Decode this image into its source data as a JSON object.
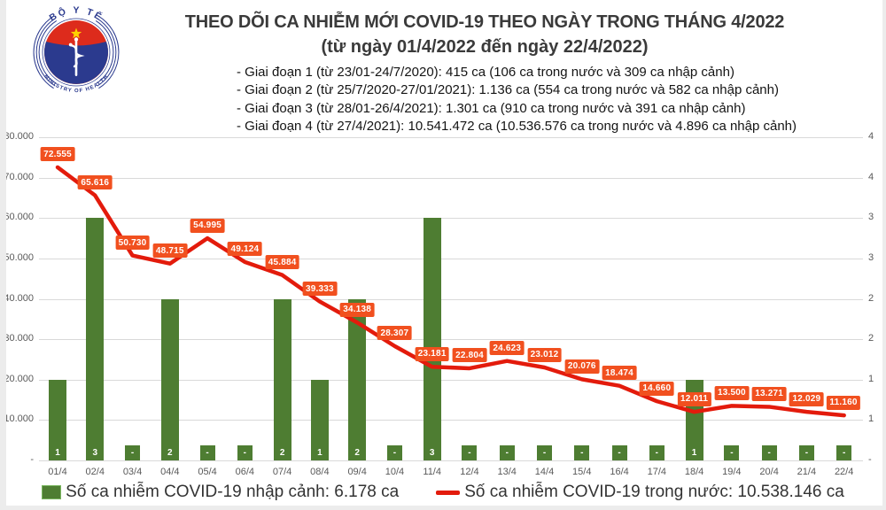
{
  "logo": {
    "top_text": "BỘ Y TẾ",
    "bottom_text": "MINISTRY OF HEALTH",
    "red": "#dd2b1c",
    "blue": "#2b3a8e",
    "star": "#ffd200"
  },
  "header": {
    "title": "THEO DÕI CA NHIỄM MỚI COVID-19 THEO NGÀY TRONG THÁNG 4/2022",
    "subtitle": "(từ ngày 01/4/2022 đến ngày 22/4/2022)",
    "phases": [
      "- Giai đoạn 1 (từ 23/01-24/7/2020): 415 ca (106 ca trong nước và 309 ca nhập cảnh)",
      "- Giai đoạn 2 (từ 25/7/2020-27/01/2021): 1.136 ca (554 ca trong nước và 582 ca nhập cảnh)",
      "- Giai đoạn 3 (từ 28/01-26/4/2021): 1.301 ca (910 ca trong nước và 391 ca nhập cảnh)",
      "- Giai đoạn 4 (từ 27/4/2021): 10.541.472 ca (10.536.576 ca trong nước và 4.896 ca nhập cảnh)"
    ]
  },
  "legend": {
    "bar_label": "Số ca nhiễm COVID-19 nhập cảnh: 6.178 ca",
    "line_label": "Số ca nhiễm COVID-19 trong nước: 10.538.146 ca"
  },
  "chart_data": {
    "type": "combo",
    "categories": [
      "01/4",
      "02/4",
      "03/4",
      "04/4",
      "05/4",
      "06/4",
      "07/4",
      "08/4",
      "09/4",
      "10/4",
      "11/4",
      "12/4",
      "13/4",
      "14/4",
      "15/4",
      "16/4",
      "17/4",
      "18/4",
      "19/4",
      "20/4",
      "21/4",
      "22/4"
    ],
    "series": [
      {
        "name": "Số ca nhiễm COVID-19 nhập cảnh",
        "type": "bar",
        "axis": "right",
        "color": "#4e7d32",
        "values": [
          1,
          3,
          0,
          2,
          0,
          0,
          2,
          1,
          2,
          0,
          3,
          0,
          0,
          0,
          0,
          0,
          0,
          1,
          0,
          0,
          0,
          0
        ],
        "labels": [
          "1",
          "3",
          "-",
          "2",
          "-",
          "-",
          "2",
          "1",
          "2",
          "-",
          "3",
          "-",
          "-",
          "-",
          "-",
          "-",
          "-",
          "1",
          "-",
          "-",
          "-",
          "-"
        ],
        "total": "6.178"
      },
      {
        "name": "Số ca nhiễm COVID-19 trong nước",
        "type": "line",
        "axis": "left",
        "color": "#e31b0c",
        "label_bg": "#f1501f",
        "values": [
          72555,
          65616,
          50730,
          48715,
          54995,
          49124,
          45884,
          39333,
          34138,
          28307,
          23181,
          22804,
          24623,
          23012,
          20076,
          18474,
          14660,
          12011,
          13500,
          13271,
          12029,
          11160
        ],
        "labels": [
          "72.555",
          "65.616",
          "50.730",
          "48.715",
          "54.995",
          "49.124",
          "45.884",
          "39.333",
          "34.138",
          "28.307",
          "23.181",
          "22.804",
          "24.623",
          "23.012",
          "20.076",
          "18.474",
          "14.660",
          "12.011",
          "13.500",
          "13.271",
          "12.029",
          "11.160"
        ],
        "total": "10.538.146"
      }
    ],
    "left_axis": {
      "min": 0,
      "max": 80000,
      "ticks": [
        "80.000",
        "70.000",
        "60.000",
        "50.000",
        "40.000",
        "30.000",
        "20.000",
        "10.000",
        "-"
      ]
    },
    "right_axis": {
      "min": 0,
      "max": 4,
      "ticks": [
        "4",
        "4",
        "3",
        "3",
        "2",
        "2",
        "1",
        "1",
        "-"
      ]
    },
    "grid": true,
    "legend_position": "bottom"
  }
}
